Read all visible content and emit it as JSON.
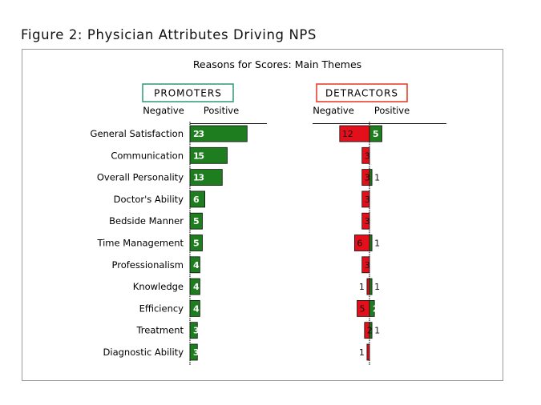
{
  "figure_title": "Figure 2:  Physician Attributes Driving NPS",
  "chart_data": {
    "type": "bar",
    "title": "Reasons for Scores: Main Themes",
    "categories": [
      "General Satisfaction",
      "Communication",
      "Overall Personality",
      "Doctor's Ability",
      "Bedside Manner",
      "Time Management",
      "Professionalism",
      "Knowledge",
      "Efficiency",
      "Treatment",
      "Diagnostic Ability"
    ],
    "panels": [
      {
        "name": "PROMOTERS",
        "negative_label": "Negative",
        "positive_label": "Positive",
        "series": [
          {
            "name": "Negative",
            "values": [
              0,
              0,
              0,
              0,
              0,
              0,
              0,
              0,
              0,
              0,
              0
            ]
          },
          {
            "name": "Positive",
            "values": [
              23,
              15,
              13,
              6,
              5,
              5,
              4,
              4,
              4,
              3,
              3
            ]
          }
        ]
      },
      {
        "name": "DETRACTORS",
        "negative_label": "Negative",
        "positive_label": "Positive",
        "series": [
          {
            "name": "Negative",
            "values": [
              12,
              3,
              3,
              3,
              3,
              6,
              3,
              1,
              5,
              2,
              1
            ]
          },
          {
            "name": "Positive",
            "values": [
              5,
              0,
              1,
              0,
              0,
              1,
              0,
              1,
              2,
              1,
              0
            ]
          }
        ]
      }
    ],
    "colors": {
      "positive": "#1e7d1e",
      "negative": "#e30f1b",
      "promoters_box": "#2f9a74",
      "detractors_box": "#e8331d"
    }
  }
}
